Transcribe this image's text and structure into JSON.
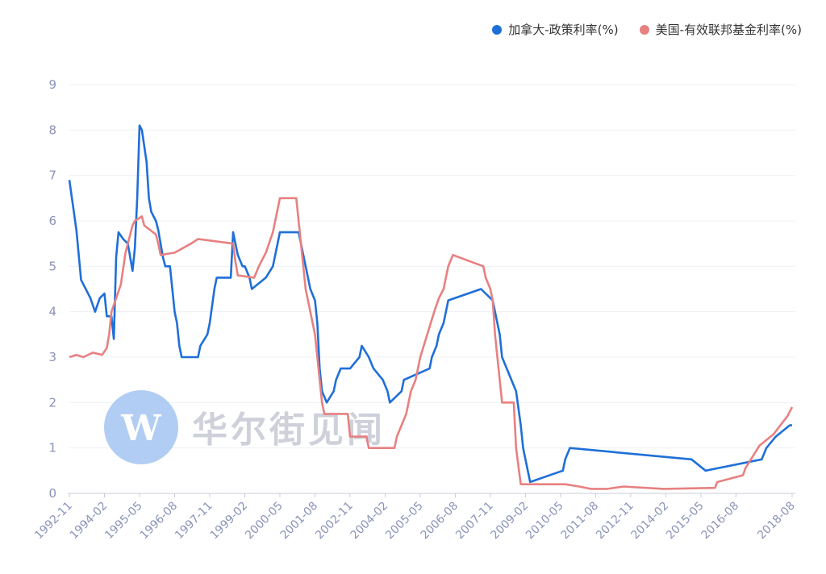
{
  "watermark": {
    "text": "华尔街见闻",
    "logo_letter": "W"
  },
  "legend": [
    {
      "label": "加拿大-政策利率(%)",
      "color": "#1f6fd8"
    },
    {
      "label": "美国-有效联邦基金利率(%)",
      "color": "#e88080"
    }
  ],
  "chart_data": {
    "type": "line",
    "x_start": "1992-11",
    "x_end": "2018-08",
    "ylim": [
      0,
      9
    ],
    "y_ticks": [
      "0",
      "1",
      "2",
      "3",
      "4",
      "5",
      "6",
      "7",
      "8",
      "9"
    ],
    "x_ticks": [
      "1992-11",
      "1994-02",
      "1995-05",
      "1996-08",
      "1997-11",
      "1999-02",
      "2000-05",
      "2001-08",
      "2002-11",
      "2004-02",
      "2005-05",
      "2006-08",
      "2007-11",
      "2009-02",
      "2010-05",
      "2011-08",
      "2012-11",
      "2014-02",
      "2015-05",
      "2016-08",
      "2018-08"
    ],
    "grid": true,
    "legend_position": "top-right",
    "series": [
      {
        "name": "加拿大-政策利率(%)",
        "color": "#1f6fd8",
        "points": [
          [
            "1992-11",
            6.9
          ],
          [
            "1993-02",
            5.8
          ],
          [
            "1993-04",
            4.7
          ],
          [
            "1993-06",
            4.5
          ],
          [
            "1993-08",
            4.3
          ],
          [
            "1993-10",
            4.0
          ],
          [
            "1993-12",
            4.3
          ],
          [
            "1994-02",
            4.4
          ],
          [
            "1994-03",
            3.9
          ],
          [
            "1994-05",
            3.9
          ],
          [
            "1994-06",
            3.4
          ],
          [
            "1994-07",
            5.2
          ],
          [
            "1994-08",
            5.75
          ],
          [
            "1994-10",
            5.6
          ],
          [
            "1994-12",
            5.5
          ],
          [
            "1995-02",
            4.9
          ],
          [
            "1995-03",
            5.4
          ],
          [
            "1995-04",
            6.5
          ],
          [
            "1995-05",
            8.1
          ],
          [
            "1995-06",
            8.0
          ],
          [
            "1995-08",
            7.3
          ],
          [
            "1995-09",
            6.5
          ],
          [
            "1995-10",
            6.2
          ],
          [
            "1995-12",
            6.0
          ],
          [
            "1996-01",
            5.8
          ],
          [
            "1996-02",
            5.5
          ],
          [
            "1996-03",
            5.2
          ],
          [
            "1996-04",
            5.0
          ],
          [
            "1996-06",
            5.0
          ],
          [
            "1996-08",
            4.0
          ],
          [
            "1996-09",
            3.75
          ],
          [
            "1996-10",
            3.25
          ],
          [
            "1996-11",
            3.0
          ],
          [
            "1997-06",
            3.0
          ],
          [
            "1997-07",
            3.25
          ],
          [
            "1997-10",
            3.5
          ],
          [
            "1997-11",
            3.75
          ],
          [
            "1998-01",
            4.5
          ],
          [
            "1998-02",
            4.75
          ],
          [
            "1998-08",
            4.75
          ],
          [
            "1998-09",
            5.75
          ],
          [
            "1998-10",
            5.5
          ],
          [
            "1998-11",
            5.25
          ],
          [
            "1999-01",
            5.0
          ],
          [
            "1999-02",
            5.0
          ],
          [
            "1999-04",
            4.75
          ],
          [
            "1999-05",
            4.5
          ],
          [
            "1999-11",
            4.75
          ],
          [
            "2000-02",
            5.0
          ],
          [
            "2000-03",
            5.25
          ],
          [
            "2000-05",
            5.75
          ],
          [
            "2001-01",
            5.75
          ],
          [
            "2001-02",
            5.5
          ],
          [
            "2001-04",
            5.0
          ],
          [
            "2001-06",
            4.5
          ],
          [
            "2001-08",
            4.25
          ],
          [
            "2001-09",
            3.75
          ],
          [
            "2001-10",
            2.75
          ],
          [
            "2001-11",
            2.25
          ],
          [
            "2002-01",
            2.0
          ],
          [
            "2002-04",
            2.25
          ],
          [
            "2002-05",
            2.5
          ],
          [
            "2002-07",
            2.75
          ],
          [
            "2002-11",
            2.75
          ],
          [
            "2003-03",
            3.0
          ],
          [
            "2003-04",
            3.25
          ],
          [
            "2003-07",
            3.0
          ],
          [
            "2003-09",
            2.75
          ],
          [
            "2004-01",
            2.5
          ],
          [
            "2004-03",
            2.25
          ],
          [
            "2004-04",
            2.0
          ],
          [
            "2004-09",
            2.25
          ],
          [
            "2004-10",
            2.5
          ],
          [
            "2005-09",
            2.75
          ],
          [
            "2005-10",
            3.0
          ],
          [
            "2005-12",
            3.25
          ],
          [
            "2006-01",
            3.5
          ],
          [
            "2006-03",
            3.75
          ],
          [
            "2006-04",
            4.0
          ],
          [
            "2006-05",
            4.25
          ],
          [
            "2007-07",
            4.5
          ],
          [
            "2007-12",
            4.25
          ],
          [
            "2008-01",
            4.0
          ],
          [
            "2008-03",
            3.5
          ],
          [
            "2008-04",
            3.0
          ],
          [
            "2008-10",
            2.25
          ],
          [
            "2008-12",
            1.5
          ],
          [
            "2009-01",
            1.0
          ],
          [
            "2009-03",
            0.5
          ],
          [
            "2009-04",
            0.25
          ],
          [
            "2010-06",
            0.5
          ],
          [
            "2010-07",
            0.75
          ],
          [
            "2010-09",
            1.0
          ],
          [
            "2015-01",
            0.75
          ],
          [
            "2015-07",
            0.5
          ],
          [
            "2017-07",
            0.75
          ],
          [
            "2017-09",
            1.0
          ],
          [
            "2018-01",
            1.25
          ],
          [
            "2018-07",
            1.5
          ],
          [
            "2018-08",
            1.5
          ]
        ]
      },
      {
        "name": "美国-有效联邦基金利率(%)",
        "color": "#e88080",
        "points": [
          [
            "1992-11",
            3.0
          ],
          [
            "1993-02",
            3.05
          ],
          [
            "1993-05",
            3.0
          ],
          [
            "1993-09",
            3.1
          ],
          [
            "1994-01",
            3.05
          ],
          [
            "1994-03",
            3.2
          ],
          [
            "1994-04",
            3.5
          ],
          [
            "1994-05",
            4.0
          ],
          [
            "1994-07",
            4.3
          ],
          [
            "1994-09",
            4.6
          ],
          [
            "1994-11",
            5.3
          ],
          [
            "1995-02",
            5.9
          ],
          [
            "1995-03",
            6.0
          ],
          [
            "1995-06",
            6.1
          ],
          [
            "1995-07",
            5.9
          ],
          [
            "1995-12",
            5.7
          ],
          [
            "1996-01",
            5.5
          ],
          [
            "1996-02",
            5.25
          ],
          [
            "1996-08",
            5.3
          ],
          [
            "1997-03",
            5.5
          ],
          [
            "1997-06",
            5.6
          ],
          [
            "1998-09",
            5.5
          ],
          [
            "1998-10",
            5.1
          ],
          [
            "1998-11",
            4.8
          ],
          [
            "1999-06",
            4.75
          ],
          [
            "1999-08",
            5.0
          ],
          [
            "1999-11",
            5.3
          ],
          [
            "2000-02",
            5.75
          ],
          [
            "2000-03",
            6.0
          ],
          [
            "2000-05",
            6.5
          ],
          [
            "2000-12",
            6.5
          ],
          [
            "2001-01",
            6.0
          ],
          [
            "2001-02",
            5.5
          ],
          [
            "2001-03",
            5.0
          ],
          [
            "2001-04",
            4.5
          ],
          [
            "2001-06",
            4.0
          ],
          [
            "2001-08",
            3.5
          ],
          [
            "2001-09",
            3.0
          ],
          [
            "2001-10",
            2.5
          ],
          [
            "2001-11",
            2.0
          ],
          [
            "2001-12",
            1.75
          ],
          [
            "2002-10",
            1.75
          ],
          [
            "2002-11",
            1.25
          ],
          [
            "2003-06",
            1.25
          ],
          [
            "2003-07",
            1.0
          ],
          [
            "2004-06",
            1.0
          ],
          [
            "2004-07",
            1.25
          ],
          [
            "2004-09",
            1.5
          ],
          [
            "2004-11",
            1.75
          ],
          [
            "2005-01",
            2.25
          ],
          [
            "2005-03",
            2.5
          ],
          [
            "2005-05",
            3.0
          ],
          [
            "2005-08",
            3.5
          ],
          [
            "2005-11",
            4.0
          ],
          [
            "2006-01",
            4.3
          ],
          [
            "2006-03",
            4.5
          ],
          [
            "2006-05",
            5.0
          ],
          [
            "2006-07",
            5.25
          ],
          [
            "2007-08",
            5.0
          ],
          [
            "2007-09",
            4.75
          ],
          [
            "2007-11",
            4.5
          ],
          [
            "2007-12",
            4.25
          ],
          [
            "2008-01",
            3.5
          ],
          [
            "2008-02",
            3.0
          ],
          [
            "2008-03",
            2.5
          ],
          [
            "2008-04",
            2.0
          ],
          [
            "2008-09",
            2.0
          ],
          [
            "2008-10",
            1.0
          ],
          [
            "2008-12",
            0.2
          ],
          [
            "2009-02",
            0.2
          ],
          [
            "2010-07",
            0.2
          ],
          [
            "2011-01",
            0.15
          ],
          [
            "2011-06",
            0.1
          ],
          [
            "2012-01",
            0.1
          ],
          [
            "2012-08",
            0.15
          ],
          [
            "2014-01",
            0.1
          ],
          [
            "2015-11",
            0.12
          ],
          [
            "2015-12",
            0.25
          ],
          [
            "2016-11",
            0.4
          ],
          [
            "2016-12",
            0.55
          ],
          [
            "2017-03",
            0.8
          ],
          [
            "2017-06",
            1.05
          ],
          [
            "2017-12",
            1.3
          ],
          [
            "2018-03",
            1.5
          ],
          [
            "2018-06",
            1.7
          ],
          [
            "2018-08",
            1.9
          ]
        ]
      }
    ]
  }
}
